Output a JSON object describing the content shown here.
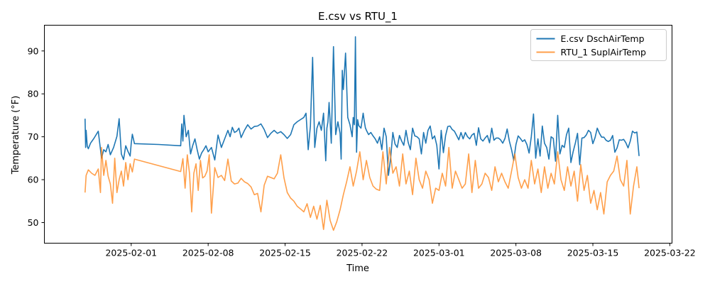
{
  "chart_data": {
    "type": "line",
    "title": "E.csv vs RTU_1",
    "xlabel": "Time",
    "ylabel": "Temperature (°F)",
    "x_tick_labels": [
      "2025-02-01",
      "2025-02-08",
      "2025-02-15",
      "2025-02-22",
      "2025-03-01",
      "2025-03-08",
      "2025-03-15",
      "2025-03-22"
    ],
    "x_tick_days": [
      6,
      13,
      20,
      27,
      34,
      41,
      48,
      55
    ],
    "y_ticks": [
      50,
      60,
      70,
      80,
      90
    ],
    "xlim_days": [
      -1.9,
      55.2
    ],
    "ylim": [
      45.2,
      96.0
    ],
    "legend_position": "top-right",
    "series": [
      {
        "name": "E.csv DschAirTemp",
        "color": "#1f77b4",
        "x_days": [
          1.8,
          1.85,
          1.9,
          2.0,
          2.1,
          2.3,
          2.6,
          3.0,
          3.3,
          3.5,
          3.7,
          3.9,
          4.1,
          4.4,
          4.7,
          4.9,
          5.1,
          5.3,
          5.5,
          5.7,
          5.9,
          6.0,
          6.1,
          6.3,
          8.5,
          10.5,
          10.6,
          10.7,
          10.8,
          11.0,
          11.2,
          11.4,
          11.6,
          11.8,
          12.0,
          12.2,
          12.4,
          12.6,
          12.8,
          13.0,
          13.3,
          13.6,
          13.9,
          14.2,
          14.5,
          14.8,
          15.0,
          15.2,
          15.4,
          15.6,
          15.8,
          16.0,
          16.3,
          16.6,
          16.9,
          17.2,
          17.5,
          17.8,
          18.1,
          18.4,
          18.7,
          19.0,
          19.3,
          19.6,
          19.9,
          20.2,
          20.5,
          20.8,
          21.1,
          21.4,
          21.7,
          21.9,
          22.1,
          22.3,
          22.5,
          22.7,
          22.9,
          23.1,
          23.3,
          23.5,
          23.7,
          23.8,
          23.9,
          24.0,
          24.2,
          24.4,
          24.6,
          24.8,
          25.0,
          25.1,
          25.2,
          25.3,
          25.5,
          25.7,
          25.9,
          26.1,
          26.2,
          26.3,
          26.4,
          26.5,
          26.6,
          26.7,
          26.9,
          27.1,
          27.2,
          27.3,
          27.4,
          27.6,
          27.8,
          28.0,
          28.2,
          28.4,
          28.6,
          28.8,
          29.0,
          29.2,
          29.4,
          29.6,
          29.8,
          30.0,
          30.2,
          30.4,
          30.6,
          30.8,
          31.0,
          31.2,
          31.4,
          31.6,
          31.8,
          32.0,
          32.2,
          32.4,
          32.6,
          32.8,
          33.0,
          33.2,
          33.4,
          33.6,
          33.8,
          34.0,
          34.2,
          34.4,
          34.6,
          34.8,
          35.0,
          35.2,
          35.4,
          35.6,
          35.8,
          36.0,
          36.2,
          36.4,
          36.6,
          36.8,
          37.0,
          37.2,
          37.4,
          37.6,
          37.8,
          38.0,
          38.2,
          38.4,
          38.6,
          38.8,
          39.0,
          39.2,
          39.4,
          39.6,
          39.8,
          40.0,
          40.2,
          40.4,
          40.6,
          40.8,
          41.0,
          41.2,
          41.4,
          41.6,
          41.8,
          42.0,
          42.2,
          42.4,
          42.6,
          42.8,
          43.0,
          43.2,
          43.4,
          43.6,
          43.8,
          44.0,
          44.2,
          44.4,
          44.6,
          44.8,
          45.0,
          45.2,
          45.4,
          45.6,
          45.8,
          46.0,
          46.2,
          46.4,
          46.6,
          46.8,
          47.0,
          47.2,
          47.4,
          47.6,
          47.8,
          48.0,
          48.2,
          48.4,
          48.6,
          48.8,
          49.0,
          49.2,
          49.4,
          49.6,
          49.8,
          50.0,
          50.2,
          50.4,
          50.6,
          50.8,
          51.0,
          51.2,
          51.4,
          51.6,
          51.8,
          52.0,
          52.2
        ],
        "values": [
          74.2,
          67.5,
          71.5,
          67.8,
          67.2,
          68.5,
          69.6,
          71.3,
          65.0,
          67.0,
          66.5,
          68.2,
          65.8,
          67.5,
          70.1,
          74.2,
          66.0,
          64.7,
          67.9,
          66.6,
          65.5,
          68.4,
          70.6,
          68.4,
          68.2,
          67.9,
          73.0,
          69.0,
          75.0,
          70.0,
          71.5,
          66.0,
          68.0,
          69.5,
          67.0,
          64.8,
          66.2,
          67.0,
          67.9,
          66.5,
          67.5,
          64.6,
          70.4,
          67.5,
          69.5,
          71.5,
          70.0,
          72.2,
          71.0,
          71.3,
          72.0,
          69.8,
          71.5,
          72.8,
          71.8,
          72.4,
          72.5,
          73.0,
          71.7,
          69.8,
          70.8,
          71.5,
          70.8,
          71.2,
          70.5,
          69.6,
          70.5,
          72.8,
          73.5,
          74.0,
          74.5,
          75.5,
          67.0,
          72.5,
          88.5,
          67.5,
          72.0,
          73.5,
          71.5,
          75.5,
          64.4,
          72.0,
          73.5,
          78.0,
          68.5,
          91.0,
          70.5,
          73.5,
          70.8,
          64.8,
          85.5,
          81.0,
          89.5,
          74.5,
          72.8,
          70.0,
          74.5,
          72.8,
          93.3,
          66.4,
          74.0,
          72.6,
          72.0,
          75.5,
          73.7,
          72.1,
          71.5,
          70.5,
          71.0,
          70.2,
          69.5,
          68.5,
          70.0,
          67.0,
          72.0,
          70.0,
          61.0,
          65.0,
          71.0,
          68.3,
          67.5,
          70.3,
          69.0,
          68.0,
          71.5,
          68.7,
          67.0,
          72.0,
          70.2,
          70.0,
          69.5,
          66.0,
          71.0,
          68.5,
          71.5,
          72.5,
          69.5,
          70.2,
          68.0,
          62.5,
          71.5,
          66.3,
          70.3,
          72.4,
          72.5,
          71.7,
          71.3,
          70.3,
          69.3,
          71.0,
          69.5,
          71.0,
          70.0,
          69.5,
          70.4,
          70.8,
          68.0,
          72.1,
          69.5,
          69.0,
          69.7,
          70.3,
          68.6,
          72.0,
          69.2,
          69.7,
          69.7,
          69.3,
          68.5,
          69.6,
          71.8,
          69.0,
          67.0,
          64.5,
          68.2,
          70.2,
          69.6,
          68.9,
          69.3,
          68.2,
          66.2,
          70.0,
          75.3,
          65.0,
          69.5,
          65.5,
          72.5,
          68.5,
          67.5,
          64.8,
          70.0,
          69.6,
          64.3,
          75.0,
          66.0,
          68.0,
          67.5,
          70.5,
          72.0,
          64.0,
          66.5,
          68.5,
          70.8,
          63.5,
          69.7,
          69.8,
          70.4,
          71.5,
          71.0,
          68.4,
          69.8,
          72.0,
          70.8,
          69.9,
          69.9,
          69.2,
          68.9,
          69.2,
          70.3,
          66.4,
          67.4,
          69.3,
          69.2,
          69.4,
          68.6,
          67.4,
          69.0,
          71.3,
          70.9,
          71.1,
          65.5
        ]
      },
      {
        "name": "RTU_1 SuplAirTemp",
        "color": "#ff7f0e",
        "x_days": [
          1.8,
          1.9,
          2.1,
          2.4,
          2.7,
          3.0,
          3.2,
          3.3,
          3.5,
          3.7,
          3.9,
          4.1,
          4.3,
          4.5,
          4.7,
          4.9,
          5.1,
          5.3,
          5.5,
          5.7,
          5.9,
          6.1,
          6.3,
          10.5,
          10.7,
          10.9,
          11.1,
          11.3,
          11.5,
          11.7,
          11.9,
          12.1,
          12.3,
          12.5,
          12.7,
          12.9,
          13.1,
          13.3,
          13.6,
          13.9,
          14.2,
          14.5,
          14.8,
          15.1,
          15.4,
          15.7,
          16.0,
          16.3,
          16.6,
          16.9,
          17.2,
          17.5,
          17.8,
          18.1,
          18.4,
          18.7,
          19.0,
          19.3,
          19.6,
          19.9,
          20.2,
          20.5,
          20.8,
          21.1,
          21.4,
          21.7,
          22.0,
          22.3,
          22.6,
          22.9,
          23.2,
          23.5,
          23.8,
          24.1,
          24.4,
          24.7,
          25.0,
          25.3,
          25.6,
          25.9,
          26.2,
          26.5,
          26.8,
          27.1,
          27.4,
          27.7,
          28.0,
          28.3,
          28.6,
          28.9,
          29.2,
          29.5,
          29.8,
          30.1,
          30.4,
          30.7,
          31.0,
          31.3,
          31.6,
          31.9,
          32.2,
          32.5,
          32.8,
          33.1,
          33.4,
          33.7,
          34.0,
          34.3,
          34.6,
          34.9,
          35.2,
          35.5,
          35.8,
          36.1,
          36.4,
          36.7,
          37.0,
          37.3,
          37.6,
          37.9,
          38.2,
          38.5,
          38.8,
          39.1,
          39.4,
          39.7,
          40.0,
          40.3,
          40.6,
          40.9,
          41.2,
          41.5,
          41.8,
          42.1,
          42.4,
          42.7,
          43.0,
          43.3,
          43.6,
          43.9,
          44.2,
          44.5,
          44.8,
          45.1,
          45.4,
          45.7,
          46.0,
          46.3,
          46.6,
          46.9,
          47.2,
          47.5,
          47.8,
          48.1,
          48.4,
          48.7,
          49.0,
          49.3,
          49.6,
          49.9,
          50.2,
          50.5,
          50.8,
          51.1,
          51.4,
          51.7,
          52.0,
          52.2
        ],
        "values": [
          57.0,
          61.0,
          62.3,
          61.5,
          61.0,
          62.5,
          57.0,
          67.5,
          61.0,
          64.5,
          60.8,
          59.0,
          54.5,
          65.0,
          57.0,
          60.0,
          62.0,
          58.5,
          64.0,
          60.0,
          63.7,
          61.8,
          64.8,
          61.9,
          64.9,
          58.0,
          65.8,
          61.5,
          52.5,
          61.5,
          63.7,
          57.5,
          64.5,
          60.4,
          60.8,
          62.0,
          65.8,
          52.2,
          62.8,
          60.5,
          61.0,
          59.8,
          64.8,
          59.7,
          59.0,
          59.2,
          60.3,
          59.5,
          59.1,
          58.3,
          56.5,
          56.8,
          52.5,
          58.7,
          60.8,
          60.5,
          60.2,
          61.5,
          65.8,
          60.4,
          57.0,
          55.7,
          55.0,
          53.8,
          53.2,
          52.5,
          54.4,
          51.2,
          53.8,
          50.8,
          54.0,
          48.4,
          55.2,
          50.5,
          48.2,
          50.2,
          53.0,
          56.5,
          59.5,
          63.0,
          58.5,
          62.0,
          66.5,
          60.0,
          64.5,
          60.5,
          58.5,
          57.8,
          57.5,
          66.5,
          59.0,
          67.5,
          61.5,
          63.0,
          58.5,
          66.0,
          59.0,
          62.0,
          56.5,
          65.0,
          60.0,
          58.0,
          62.0,
          60.0,
          54.5,
          58.0,
          57.5,
          61.5,
          58.5,
          67.5,
          58.0,
          62.0,
          60.0,
          58.0,
          59.0,
          66.0,
          57.0,
          64.5,
          58.0,
          59.0,
          61.5,
          60.5,
          57.5,
          63.0,
          59.5,
          61.5,
          59.5,
          58.0,
          62.0,
          66.0,
          60.5,
          58.0,
          60.0,
          58.0,
          64.5,
          59.0,
          62.5,
          57.0,
          63.0,
          58.0,
          61.5,
          59.0,
          66.5,
          60.0,
          57.5,
          63.0,
          58.5,
          62.0,
          55.0,
          63.5,
          57.5,
          61.0,
          54.5,
          57.5,
          53.0,
          57.0,
          52.0,
          59.5,
          61.0,
          62.0,
          65.5,
          60.0,
          58.5,
          64.5,
          52.0,
          58.5,
          63.0,
          58.0
        ]
      }
    ]
  }
}
